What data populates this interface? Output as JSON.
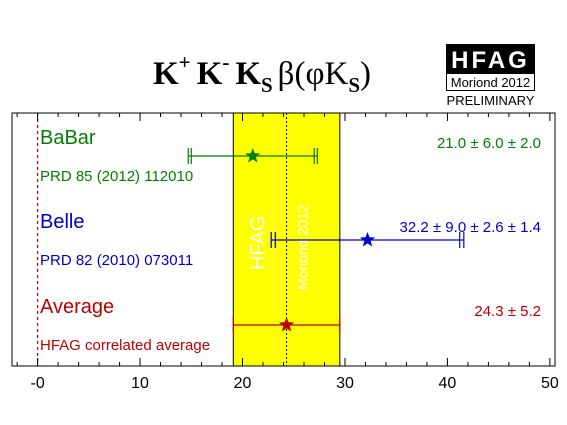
{
  "chart_data": {
    "type": "scatter",
    "title": {
      "k1": "K",
      "sup1": "+",
      "k2": "K",
      "sup2": "-",
      "k3": "K",
      "sub3": "S",
      "beta": "β(φK",
      "sub4": "S",
      "close": ")"
    },
    "xlim": [
      -2.5,
      50.5
    ],
    "xticks": [
      0,
      10,
      20,
      30,
      40,
      50
    ],
    "xtick_labels": [
      "-0",
      "10",
      "20",
      "30",
      "40",
      "50"
    ],
    "grid": false,
    "reference_line": {
      "x": 0,
      "color": "#cc0000"
    },
    "average_band": {
      "center": 24.3,
      "low": 19.1,
      "high": 29.5,
      "color": "#ffff00",
      "label": "HFAG",
      "sublabel": "Moriond 2012"
    },
    "measurements": [
      {
        "name": "BaBar",
        "reference": "PRD 85 (2012) 112010",
        "value": 21.0,
        "stat_low": 15.0,
        "stat_high": 27.0,
        "tot_low": 14.7,
        "tot_high": 27.3,
        "result_text": "21.0 ± 6.0 ± 2.0",
        "color": "#008000"
      },
      {
        "name": "Belle",
        "reference": "PRD 82 (2010) 073011",
        "value": 32.2,
        "stat_low": 23.2,
        "stat_high": 41.2,
        "tot_low": 22.8,
        "tot_high": 41.6,
        "result_text": "32.2 ± 9.0 ± 2.6 ± 1.4",
        "color": "#0000cc"
      },
      {
        "name": "Average",
        "reference": "HFAG correlated average",
        "value": 24.3,
        "stat_low": 19.1,
        "stat_high": 29.5,
        "tot_low": 19.1,
        "tot_high": 29.5,
        "result_text": "24.3 ± 5.2",
        "color": "#bb0000"
      }
    ]
  },
  "logo": {
    "text": "HFAG",
    "conference": "Moriond 2012",
    "status": "PRELIMINARY"
  },
  "colors": {
    "frame": "#000000",
    "logo_bg": "#000000",
    "logo_text": "#ffffff"
  }
}
